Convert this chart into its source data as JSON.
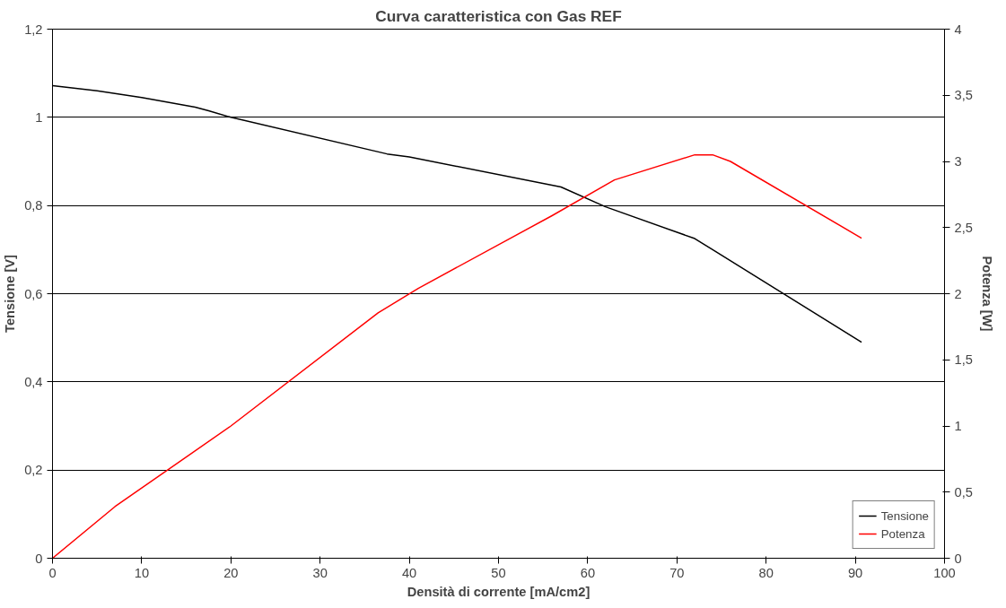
{
  "chart_data": {
    "type": "line",
    "title": "Curva caratteristica con Gas REF",
    "xlabel": "Densità di corrente [mA/cm2]",
    "ylabel": "Tensione [V]",
    "y2label": "Potenza [W]",
    "xlim": [
      0,
      100
    ],
    "xticks": [
      0,
      10,
      20,
      30,
      40,
      50,
      60,
      70,
      80,
      90,
      100
    ],
    "ylim": [
      0,
      1.2
    ],
    "yticks": [
      0,
      {
        "value": 0.2,
        "label": "0,2"
      },
      {
        "value": 0.4,
        "label": "0,4"
      },
      {
        "value": 0.6,
        "label": "0,6"
      },
      {
        "value": 0.8,
        "label": "0,8"
      },
      1,
      {
        "value": 1.2,
        "label": "1,2"
      }
    ],
    "y2lim": [
      0,
      4
    ],
    "y2ticks": [
      0,
      {
        "value": 0.5,
        "label": "0,5"
      },
      1,
      {
        "value": 1.5,
        "label": "1,5"
      },
      2,
      {
        "value": 2.5,
        "label": "2,5"
      },
      3,
      {
        "value": 3.5,
        "label": "3,5"
      },
      4
    ],
    "grid": "y",
    "legend": "bottom right",
    "marker": "none",
    "line_style": "solid",
    "series": [
      {
        "name": "Tensione",
        "color": "#000000",
        "x": [
          0,
          5,
          10,
          16,
          17.5,
          20,
          37.5,
          40,
          57,
          62,
          72,
          74,
          90.7
        ],
        "values": [
          1.072,
          1.06,
          1.045,
          1.023,
          1.015,
          1.0,
          0.917,
          0.91,
          0.842,
          0.797,
          0.725,
          0.7,
          0.49
        ]
      },
      {
        "name": "Potenza",
        "color": "#ff0000",
        "axis": "y2",
        "x": [
          0,
          7,
          20,
          36.5,
          41,
          56,
          63,
          72,
          74,
          76,
          90.7
        ],
        "values": [
          0,
          0.39,
          1.0,
          1.855,
          2.04,
          2.59,
          2.86,
          3.05,
          3.05,
          3.0,
          2.42
        ]
      }
    ]
  }
}
